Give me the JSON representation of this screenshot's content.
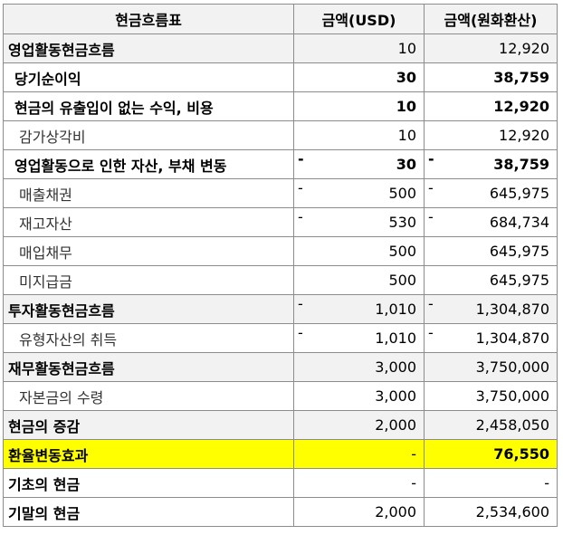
{
  "header": {
    "item": "현금흐름표",
    "usd": "금액(USD)",
    "krw": "금액(원화환산)"
  },
  "rows": [
    {
      "label": "영업활동현금흐름",
      "style": "section",
      "indent": 0,
      "bold": true,
      "numbold": false,
      "usd_sign": "",
      "usd": "10",
      "krw_sign": "",
      "krw": "12,920"
    },
    {
      "label": "당기순이익",
      "style": "",
      "indent": 1,
      "bold": true,
      "numbold": true,
      "usd_sign": "",
      "usd": "30",
      "krw_sign": "",
      "krw": "38,759"
    },
    {
      "label": "현금의 유출입이 없는 수익, 비용",
      "style": "",
      "indent": 1,
      "bold": true,
      "numbold": true,
      "usd_sign": "",
      "usd": "10",
      "krw_sign": "",
      "krw": "12,920"
    },
    {
      "label": "감가상각비",
      "style": "",
      "indent": 2,
      "bold": false,
      "numbold": false,
      "usd_sign": "",
      "usd": "10",
      "krw_sign": "",
      "krw": "12,920"
    },
    {
      "label": "영업활동으로 인한 자산, 부채 변동",
      "style": "",
      "indent": 1,
      "bold": true,
      "numbold": true,
      "usd_sign": "-",
      "usd": "30",
      "krw_sign": "-",
      "krw": "38,759"
    },
    {
      "label": "매출채권",
      "style": "",
      "indent": 2,
      "bold": false,
      "numbold": false,
      "usd_sign": "-",
      "usd": "500",
      "krw_sign": "-",
      "krw": "645,975"
    },
    {
      "label": "재고자산",
      "style": "",
      "indent": 2,
      "bold": false,
      "numbold": false,
      "usd_sign": "-",
      "usd": "530",
      "krw_sign": "-",
      "krw": "684,734"
    },
    {
      "label": "매입채무",
      "style": "",
      "indent": 2,
      "bold": false,
      "numbold": false,
      "usd_sign": "",
      "usd": "500",
      "krw_sign": "",
      "krw": "645,975"
    },
    {
      "label": "미지급금",
      "style": "",
      "indent": 2,
      "bold": false,
      "numbold": false,
      "usd_sign": "",
      "usd": "500",
      "krw_sign": "",
      "krw": "645,975"
    },
    {
      "label": "투자활동현금흐름",
      "style": "section",
      "indent": 0,
      "bold": true,
      "numbold": false,
      "usd_sign": "-",
      "usd": "1,010",
      "krw_sign": "-",
      "krw": "1,304,870"
    },
    {
      "label": "유형자산의 취득",
      "style": "",
      "indent": 2,
      "bold": false,
      "numbold": false,
      "usd_sign": "-",
      "usd": "1,010",
      "krw_sign": "-",
      "krw": "1,304,870"
    },
    {
      "label": "재무활동현금흐름",
      "style": "section",
      "indent": 0,
      "bold": true,
      "numbold": false,
      "usd_sign": "",
      "usd": "3,000",
      "krw_sign": "",
      "krw": "3,750,000"
    },
    {
      "label": "자본금의 수령",
      "style": "",
      "indent": 2,
      "bold": false,
      "numbold": false,
      "usd_sign": "",
      "usd": "3,000",
      "krw_sign": "",
      "krw": "3,750,000"
    },
    {
      "label": "현금의 증감",
      "style": "section",
      "indent": 0,
      "bold": true,
      "numbold": false,
      "usd_sign": "",
      "usd": "2,000",
      "krw_sign": "",
      "krw": "2,458,050"
    },
    {
      "label": "환율변동효과",
      "style": "hl",
      "indent": 0,
      "bold": true,
      "numbold": false,
      "usd_sign": "",
      "usd": "-",
      "krw_sign": "",
      "krw": "76,550",
      "krwbold": true
    },
    {
      "label": "기초의 현금",
      "style": "",
      "indent": 0,
      "bold": true,
      "numbold": false,
      "usd_sign": "",
      "usd": "-",
      "krw_sign": "",
      "krw": "-"
    },
    {
      "label": "기말의 현금",
      "style": "",
      "indent": 0,
      "bold": true,
      "numbold": false,
      "usd_sign": "",
      "usd": "2,000",
      "krw_sign": "",
      "krw": "2,534,600"
    }
  ]
}
